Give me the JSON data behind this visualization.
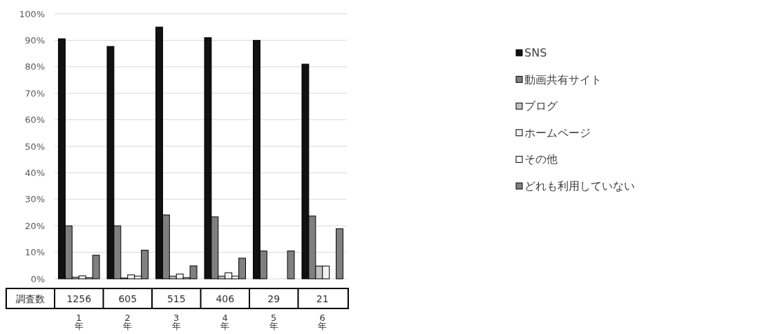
{
  "chart_data": {
    "type": "bar",
    "categories": [
      "1年",
      "2年",
      "3年",
      "4年",
      "5年",
      "6年"
    ],
    "series": [
      {
        "name": "SNS",
        "color": "#111111",
        "values": [
          90.6,
          87.7,
          95,
          91,
          90,
          81
        ]
      },
      {
        "name": "動画共有サイト",
        "color": "#7f7f7f",
        "values": [
          20,
          20,
          24.1,
          23.4,
          10.5,
          23.7
        ]
      },
      {
        "name": "ブログ",
        "color": "#c0c0c0",
        "values": [
          0.6,
          0.3,
          1,
          1,
          0,
          4.8
        ]
      },
      {
        "name": "ホームページ",
        "color": "#f2f2f2",
        "values": [
          1.1,
          1.5,
          1.8,
          2.3,
          0,
          4.8
        ]
      },
      {
        "name": "その他",
        "color": "#ffffff",
        "values": [
          0.4,
          1,
          0.4,
          1,
          0,
          0
        ]
      },
      {
        "name": "どれも利用していない",
        "color": "#808080",
        "values": [
          8.9,
          10.8,
          4.9,
          7.8,
          10.5,
          18.9
        ]
      }
    ],
    "ylim": [
      0,
      100
    ],
    "yticks": [
      {
        "value": 0,
        "label": "0%"
      },
      {
        "value": 10,
        "label": "10%"
      },
      {
        "value": 20,
        "label": "20%"
      },
      {
        "value": 30,
        "label": "30%"
      },
      {
        "value": 40,
        "label": "40%"
      },
      {
        "value": 50,
        "label": "50%"
      },
      {
        "value": 60,
        "label": "60%"
      },
      {
        "value": 70,
        "label": "70%"
      },
      {
        "value": 80,
        "label": "80%"
      },
      {
        "value": 90,
        "label": "90%"
      },
      {
        "value": 100,
        "label": "100%"
      }
    ],
    "grid": "y",
    "legend": "right",
    "annotations": [
      "調査数",
      "1256",
      "605",
      "515",
      "406",
      "29",
      "21"
    ]
  }
}
